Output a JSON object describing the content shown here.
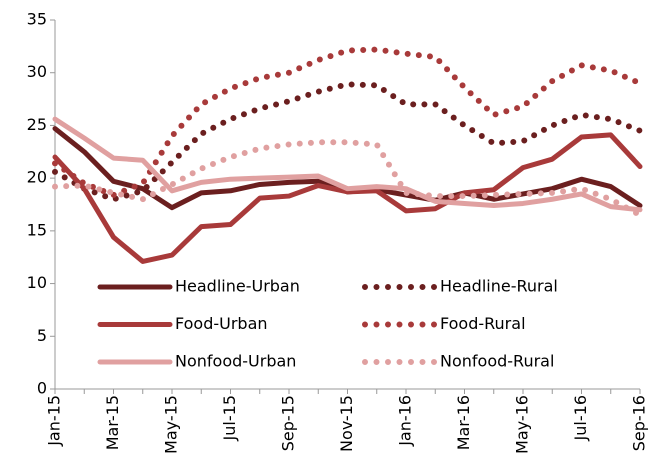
{
  "chart_data": {
    "type": "line",
    "categories": [
      "Jan-15",
      null,
      "Mar-15",
      null,
      "May-15",
      null,
      "Jul-15",
      null,
      "Sep-15",
      null,
      "Nov-15",
      null,
      "Jan-16",
      null,
      "Mar-16",
      null,
      "May-16",
      null,
      "Jul-16",
      null,
      "Sep-16"
    ],
    "ylim": [
      0,
      35
    ],
    "yticks": [
      0,
      5,
      10,
      15,
      20,
      25,
      30,
      35
    ],
    "grid": false,
    "series": [
      {
        "name": "Headline-Urban",
        "color": "#6b1f1f",
        "style": "solid",
        "values": [
          24.7,
          22.5,
          19.7,
          19.0,
          17.2,
          18.6,
          18.8,
          19.4,
          19.6,
          19.7,
          18.7,
          18.9,
          18.4,
          17.9,
          18.6,
          18.0,
          18.5,
          19.0,
          19.9,
          19.2,
          17.4
        ]
      },
      {
        "name": "Headline-Rural",
        "color": "#6b1f1f",
        "style": "dotted",
        "values": [
          20.6,
          19.0,
          18.0,
          18.8,
          21.5,
          24.2,
          25.6,
          26.6,
          27.3,
          28.2,
          28.9,
          28.8,
          27.0,
          27.0,
          25.0,
          23.3,
          23.5,
          25.0,
          26.0,
          25.6,
          24.5
        ]
      },
      {
        "name": "Food-Urban",
        "color": "#a83a3a",
        "style": "solid",
        "values": [
          22.0,
          19.0,
          14.4,
          12.1,
          12.7,
          15.4,
          15.6,
          18.1,
          18.3,
          19.3,
          18.7,
          18.8,
          16.9,
          17.1,
          18.6,
          18.9,
          21.0,
          21.8,
          23.9,
          24.1,
          21.1
        ]
      },
      {
        "name": "Food-Rural",
        "color": "#a83a3a",
        "style": "dotted",
        "values": [
          21.4,
          19.5,
          18.4,
          19.5,
          24.0,
          27.0,
          28.5,
          29.5,
          30.0,
          31.2,
          32.1,
          32.2,
          31.8,
          31.5,
          28.6,
          26.0,
          26.8,
          29.2,
          30.7,
          30.2,
          29.0
        ]
      },
      {
        "name": "Nonfood-Urban",
        "color": "#e0a0a0",
        "style": "solid",
        "values": [
          25.6,
          23.8,
          21.9,
          21.7,
          18.8,
          19.6,
          19.9,
          20.0,
          20.1,
          20.2,
          19.0,
          19.2,
          19.0,
          17.8,
          17.6,
          17.4,
          17.6,
          18.0,
          18.5,
          17.3,
          17.0
        ]
      },
      {
        "name": "Nonfood-Rural",
        "color": "#e0a0a0",
        "style": "dotted",
        "values": [
          19.2,
          19.3,
          18.6,
          18.0,
          19.4,
          20.9,
          22.0,
          22.8,
          23.2,
          23.4,
          23.4,
          23.2,
          18.6,
          18.3,
          18.3,
          18.4,
          18.5,
          18.6,
          19.0,
          18.0,
          16.5
        ]
      }
    ]
  }
}
